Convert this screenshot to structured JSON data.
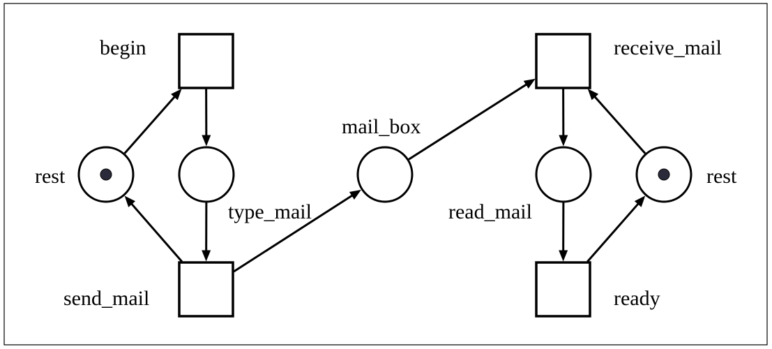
{
  "diagram": {
    "type": "petri-net",
    "places": {
      "rest_left": {
        "label": "rest",
        "tokens": 1
      },
      "type_mail": {
        "label": "type_mail",
        "tokens": 0
      },
      "mail_box": {
        "label": "mail_box",
        "tokens": 0
      },
      "read_mail": {
        "label": "read_mail",
        "tokens": 0
      },
      "rest_right": {
        "label": "rest",
        "tokens": 1
      }
    },
    "transitions": {
      "begin": {
        "label": "begin"
      },
      "send_mail": {
        "label": "send_mail"
      },
      "receive_mail": {
        "label": "receive_mail"
      },
      "ready": {
        "label": "ready"
      }
    },
    "arcs": [
      {
        "from": "rest_left",
        "to": "begin"
      },
      {
        "from": "begin",
        "to": "type_mail"
      },
      {
        "from": "type_mail",
        "to": "send_mail"
      },
      {
        "from": "send_mail",
        "to": "rest_left"
      },
      {
        "from": "send_mail",
        "to": "mail_box"
      },
      {
        "from": "mail_box",
        "to": "receive_mail"
      },
      {
        "from": "receive_mail",
        "to": "read_mail"
      },
      {
        "from": "read_mail",
        "to": "ready"
      },
      {
        "from": "ready",
        "to": "rest_right"
      },
      {
        "from": "rest_right",
        "to": "receive_mail"
      }
    ]
  }
}
